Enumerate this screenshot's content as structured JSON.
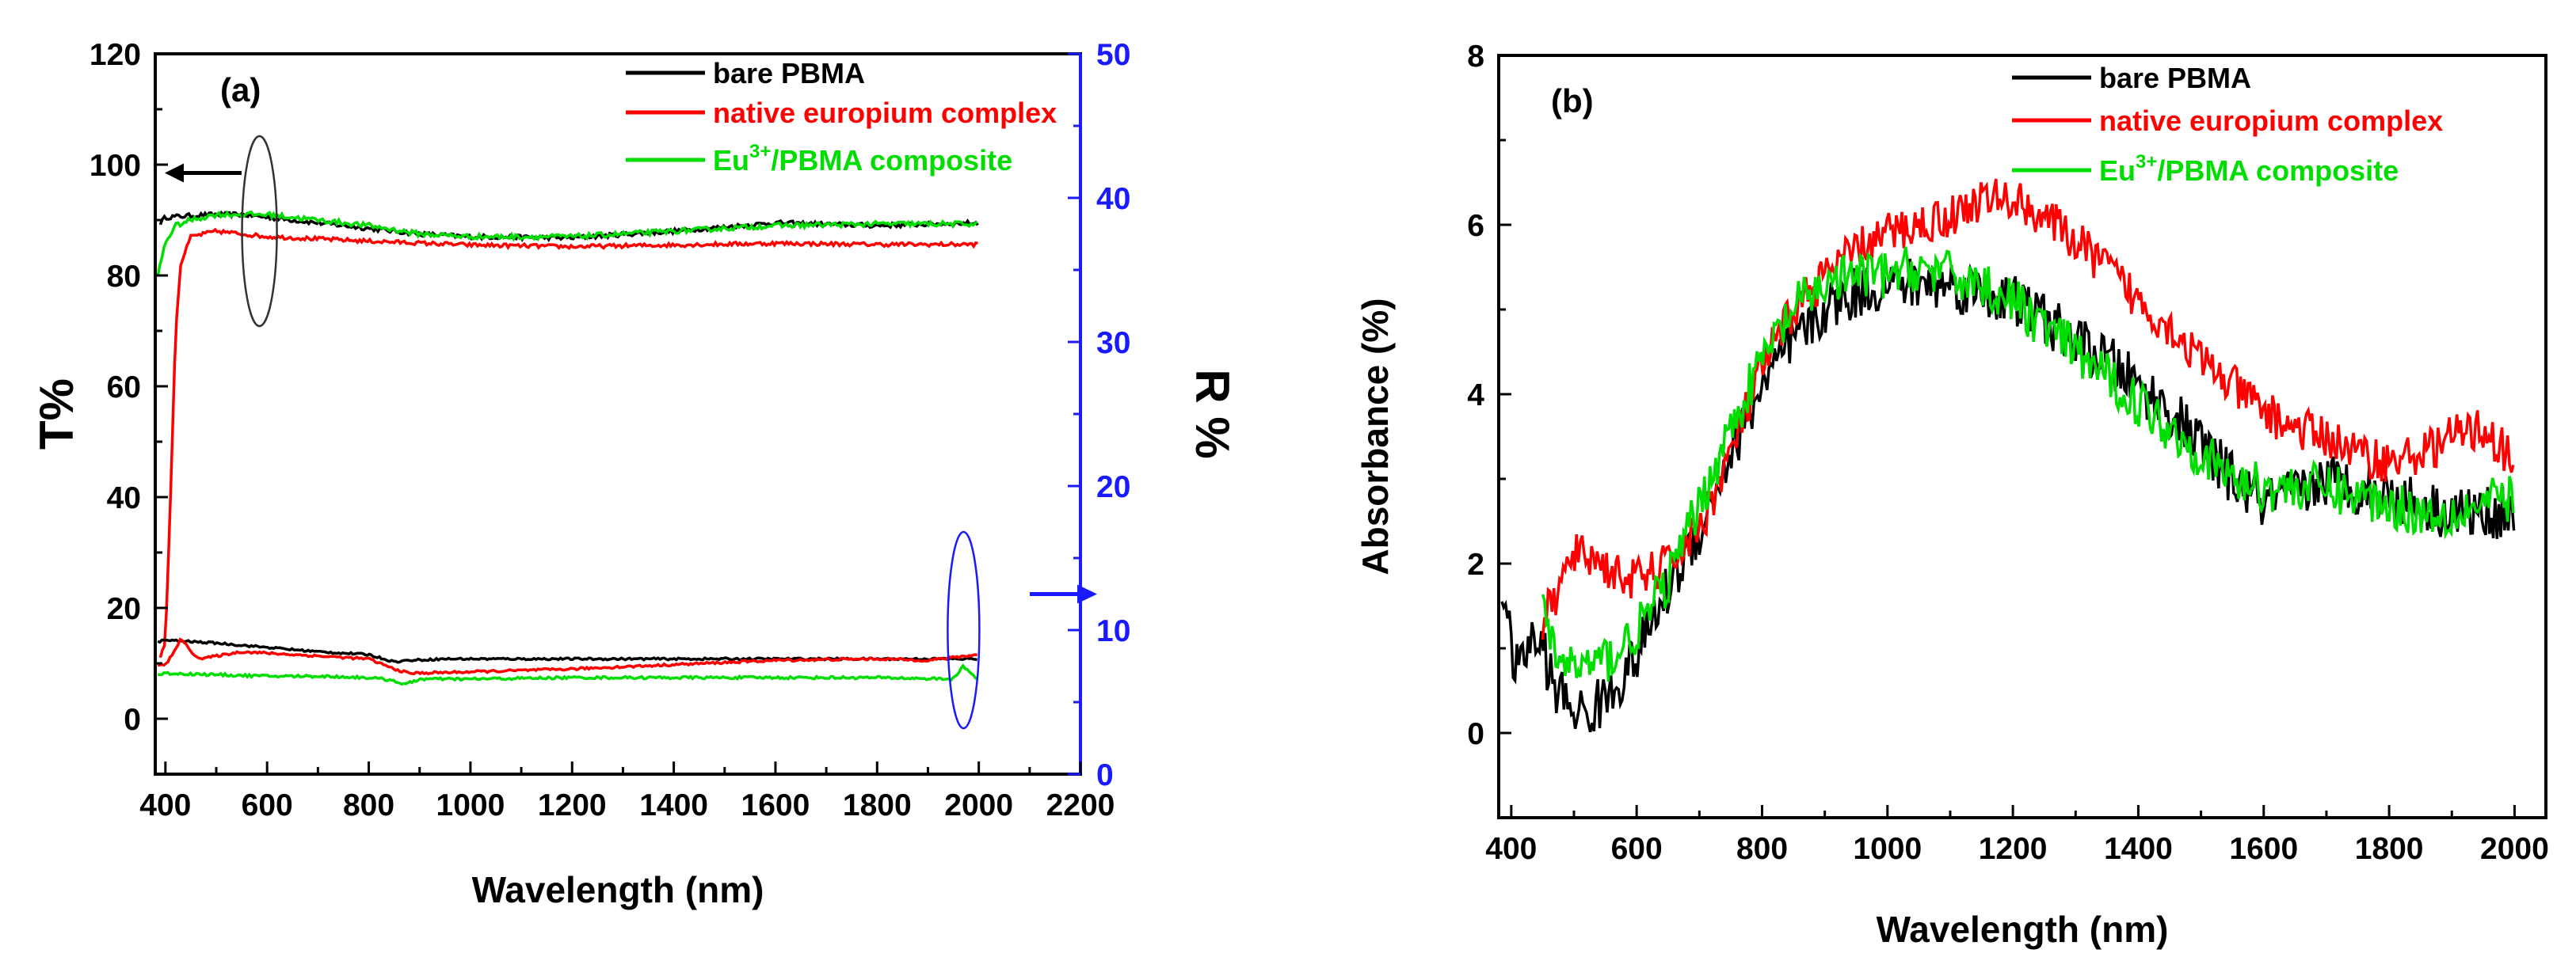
{
  "chart_data": [
    {
      "panel": "(a)",
      "type": "line",
      "xlabel": "Wavelength (nm)",
      "ylabel": "T%",
      "y2label": "R %",
      "xlim": [
        380,
        2200
      ],
      "ylim": [
        -10,
        120
      ],
      "y2lim": [
        0,
        50
      ],
      "xticks": [
        400,
        600,
        800,
        1000,
        1200,
        1400,
        1600,
        1800,
        2000,
        2200
      ],
      "yticks": [
        0,
        20,
        40,
        60,
        80,
        100,
        120
      ],
      "y2ticks": [
        0,
        10,
        20,
        30,
        40,
        50
      ],
      "colors": {
        "bare": "#000000",
        "native": "#ff0000",
        "composite": "#00dd00",
        "right_axis": "#1a1aff"
      },
      "legend": [
        {
          "key": "bare",
          "text": "bare PBMA"
        },
        {
          "key": "native",
          "text": "native europium complex"
        },
        {
          "key": "composite",
          "text_main": "Eu",
          "text_sup": "3+",
          "text_rest": "/PBMA composite"
        }
      ],
      "series_transmittance": [
        {
          "key": "bare",
          "name": "bare PBMA (T)",
          "axis": "left",
          "x": [
            390,
            400,
            450,
            500,
            550,
            600,
            700,
            800,
            900,
            1000,
            1200,
            1400,
            1600,
            1800,
            2000
          ],
          "y": [
            89.5,
            90.5,
            90.8,
            91.0,
            91.0,
            90.5,
            89.5,
            88.5,
            87.5,
            87.0,
            86.8,
            88.0,
            89.5,
            89.0,
            89.5
          ],
          "noise": 0.4
        },
        {
          "key": "native",
          "name": "native europium complex (T)",
          "axis": "left",
          "x": [
            390,
            400,
            410,
            420,
            430,
            450,
            500,
            550,
            600,
            800,
            1000,
            1200,
            1400,
            1600,
            1800,
            2000
          ],
          "y": [
            11,
            14,
            40,
            70,
            82,
            87,
            88,
            87.5,
            87,
            86.2,
            85.5,
            85.2,
            85.5,
            85.8,
            85.6,
            85.6
          ],
          "noise": 0.35
        },
        {
          "key": "composite",
          "name": "Eu3+/PBMA composite (T)",
          "axis": "left",
          "x": [
            385,
            400,
            420,
            450,
            500,
            600,
            700,
            800,
            900,
            1000,
            1200,
            1400,
            1600,
            1800,
            2000
          ],
          "y": [
            80,
            86,
            89,
            90,
            91,
            91,
            90,
            89,
            87.5,
            87,
            87,
            88,
            89,
            89.3,
            89.3
          ],
          "noise": 0.45
        }
      ],
      "series_reflectance": [
        {
          "key": "bare",
          "name": "bare PBMA (R)",
          "axis": "right",
          "x": [
            385,
            400,
            500,
            600,
            700,
            800,
            850,
            880,
            950,
            1100,
            1300,
            1500,
            1700,
            1900,
            2000
          ],
          "y": [
            9.2,
            9.3,
            9.1,
            8.8,
            8.5,
            8.3,
            7.8,
            7.9,
            8.0,
            8.0,
            8.0,
            8.0,
            8.0,
            8.0,
            8.0
          ],
          "noise": 0.07
        },
        {
          "key": "native",
          "name": "native europium complex (R)",
          "axis": "right",
          "x": [
            385,
            400,
            420,
            430,
            450,
            470,
            500,
            550,
            600,
            700,
            800,
            850,
            880,
            1000,
            1200,
            1400,
            1600,
            1800,
            1900,
            2000
          ],
          "y": [
            7.5,
            7.6,
            8.6,
            9.5,
            8.5,
            8.0,
            8.2,
            8.5,
            8.4,
            8.2,
            8.0,
            7.3,
            7.0,
            7.1,
            7.3,
            7.6,
            7.9,
            8.0,
            7.9,
            8.3
          ],
          "noise": 0.08
        },
        {
          "key": "composite",
          "name": "Eu3+/PBMA composite (R)",
          "axis": "right",
          "x": [
            385,
            400,
            500,
            600,
            700,
            800,
            850,
            870,
            900,
            1000,
            1200,
            1400,
            1600,
            1800,
            1950,
            1970,
            2000
          ],
          "y": [
            6.9,
            7.0,
            6.9,
            6.8,
            6.8,
            6.7,
            6.5,
            6.2,
            6.6,
            6.6,
            6.7,
            6.7,
            6.7,
            6.7,
            6.6,
            7.5,
            6.5
          ],
          "noise": 0.09
        }
      ],
      "annotations": [
        "left arrow near ~100% T",
        "ellipse around T curves near 580 nm",
        "ellipse around R curves near 1970 nm",
        "right arrow pointing to R axis"
      ]
    },
    {
      "panel": "(b)",
      "type": "line",
      "xlabel": "Wavelength (nm)",
      "ylabel": "Absorbance (%)",
      "xlim": [
        380,
        2050
      ],
      "ylim": [
        -1,
        8
      ],
      "xticks": [
        400,
        600,
        800,
        1000,
        1200,
        1400,
        1600,
        1800,
        2000
      ],
      "yticks": [
        0,
        2,
        4,
        6,
        8
      ],
      "legend": [
        {
          "key": "bare",
          "text": "bare PBMA"
        },
        {
          "key": "native",
          "text": "native europium complex"
        },
        {
          "key": "composite",
          "text_main": "Eu",
          "text_sup": "3+",
          "text_rest": "/PBMA composite"
        }
      ],
      "series": [
        {
          "key": "bare",
          "name": "bare PBMA",
          "x": [
            385,
            395,
            410,
            430,
            450,
            470,
            500,
            520,
            550,
            600,
            650,
            700,
            750,
            800,
            850,
            900,
            950,
            1000,
            1050,
            1100,
            1150,
            1200,
            1250,
            1300,
            1350,
            1400,
            1450,
            1500,
            1550,
            1600,
            1650,
            1700,
            1750,
            1800,
            1850,
            1900,
            1950,
            2000
          ],
          "y": [
            1.8,
            1.2,
            0.7,
            1.1,
            1.0,
            0.5,
            0.3,
            0.2,
            0.4,
            0.9,
            1.7,
            2.4,
            3.3,
            4.1,
            4.6,
            5.0,
            5.2,
            5.3,
            5.3,
            5.3,
            5.2,
            5.1,
            4.9,
            4.6,
            4.4,
            4.1,
            3.8,
            3.4,
            3.0,
            2.7,
            2.8,
            3.0,
            2.9,
            2.8,
            2.7,
            2.6,
            2.6,
            2.6
          ],
          "noise": 0.2
        },
        {
          "key": "native",
          "name": "native europium complex",
          "x": [
            450,
            470,
            500,
            530,
            560,
            600,
            650,
            700,
            750,
            800,
            850,
            900,
            950,
            1000,
            1050,
            1100,
            1150,
            1200,
            1250,
            1300,
            1350,
            1400,
            1450,
            1500,
            1550,
            1600,
            1650,
            1700,
            1750,
            1800,
            1850,
            1900,
            1950,
            2000
          ],
          "y": [
            1.3,
            1.6,
            2.1,
            2.1,
            1.9,
            1.8,
            2.0,
            2.4,
            3.3,
            4.3,
            5.0,
            5.4,
            5.7,
            5.9,
            6.0,
            6.1,
            6.3,
            6.3,
            6.1,
            5.8,
            5.5,
            5.1,
            4.8,
            4.4,
            4.1,
            3.8,
            3.6,
            3.5,
            3.3,
            3.2,
            3.3,
            3.5,
            3.6,
            3.2
          ],
          "noise": 0.16
        },
        {
          "key": "composite",
          "name": "Eu3+/PBMA composite",
          "x": [
            450,
            470,
            500,
            530,
            560,
            600,
            650,
            700,
            750,
            800,
            850,
            900,
            950,
            1000,
            1050,
            1100,
            1150,
            1200,
            1250,
            1300,
            1350,
            1400,
            1450,
            1500,
            1550,
            1600,
            1650,
            1700,
            1750,
            1800,
            1850,
            1900,
            1950,
            2000
          ],
          "y": [
            1.4,
            0.9,
            0.8,
            0.8,
            0.9,
            1.2,
            1.8,
            2.7,
            3.6,
            4.4,
            5.0,
            5.3,
            5.4,
            5.4,
            5.5,
            5.4,
            5.3,
            5.1,
            4.8,
            4.5,
            4.2,
            3.9,
            3.6,
            3.3,
            3.0,
            2.9,
            2.9,
            2.9,
            2.8,
            2.7,
            2.6,
            2.6,
            2.7,
            2.8
          ],
          "noise": 0.18
        }
      ]
    }
  ]
}
